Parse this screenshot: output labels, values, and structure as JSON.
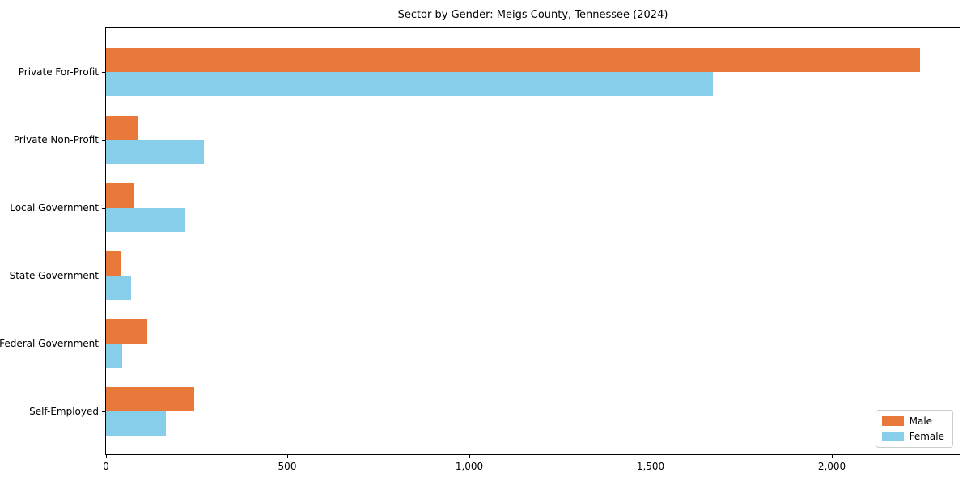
{
  "chart_data": {
    "type": "bar",
    "orientation": "horizontal",
    "title": "Sector by Gender: Meigs County, Tennessee (2024)",
    "categories": [
      "Private For-Profit",
      "Private Non-Profit",
      "Local Government",
      "State Government",
      "Federal Government",
      "Self-Employed"
    ],
    "series": [
      {
        "name": "Male",
        "color": "#e8793b",
        "values": [
          2243,
          90,
          76,
          42,
          113,
          242
        ]
      },
      {
        "name": "Female",
        "color": "#87ceeb",
        "values": [
          1671,
          269,
          218,
          68,
          44,
          164
        ]
      }
    ],
    "xlabel": "",
    "ylabel": "",
    "xlim": [
      0,
      2352
    ],
    "xticks": [
      0,
      500,
      1000,
      1500,
      2000
    ],
    "xtick_labels": [
      "0",
      "500",
      "1,000",
      "1,500",
      "2,000"
    ],
    "grid": false,
    "legend": {
      "position": "lower right",
      "entries": [
        "Male",
        "Female"
      ]
    },
    "colors": {
      "male": "#e8793b",
      "female": "#87ceeb",
      "spine": "#000000",
      "legend_border": "#cccccc"
    }
  }
}
